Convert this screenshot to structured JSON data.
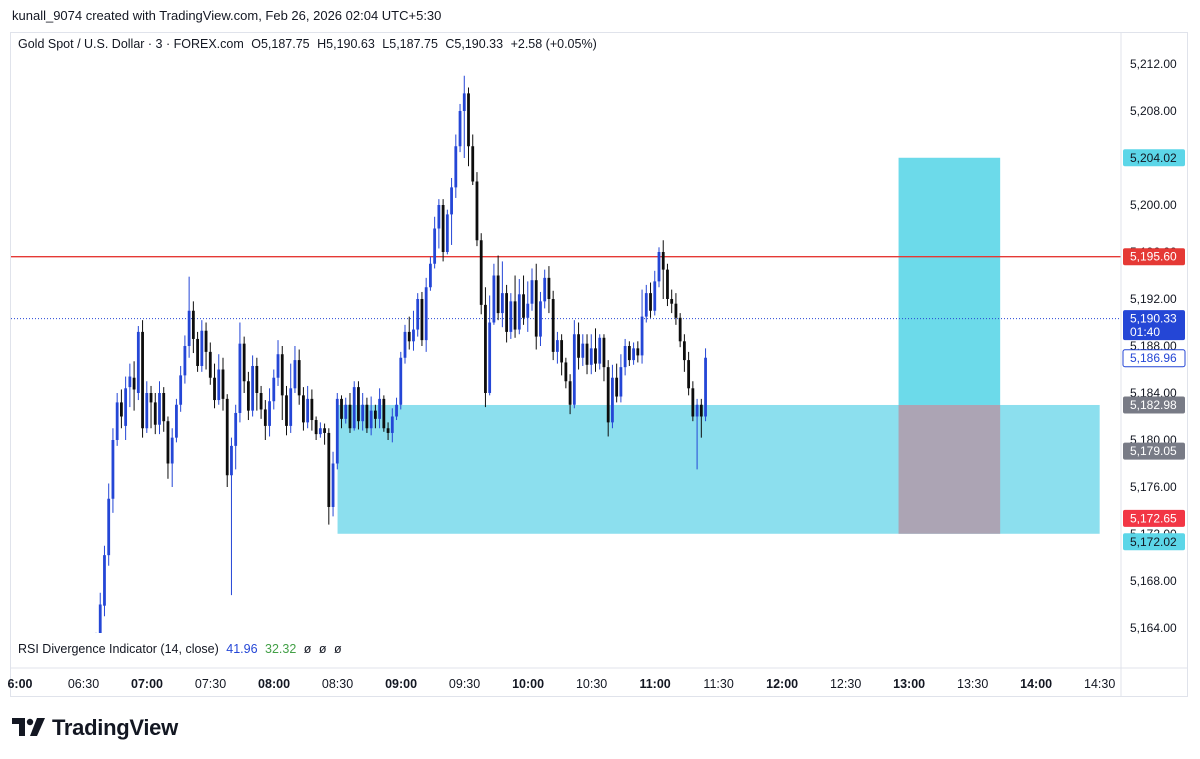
{
  "header": {
    "attribution": "kunall_9074 created with TradingView.com, Feb 26, 2026 02:04 UTC+5:30"
  },
  "legend": {
    "symbol": "Gold Spot / U.S. Dollar · 3 · FOREX.com",
    "open": "O5,187.75",
    "high": "H5,190.63",
    "low": "L5,187.75",
    "close": "C5,190.33",
    "change": "+2.58 (+0.05%)"
  },
  "rsi": {
    "name": "RSI Divergence Indicator (14, close)",
    "v1": "41.96",
    "v2": "32.32",
    "v3": "ø",
    "v4": "ø",
    "v5": "ø"
  },
  "logo": {
    "text": "TradingView"
  },
  "colors": {
    "bull": "#2446d6",
    "bear": "#0d0d0d",
    "zone": "#7fdcec",
    "target": "#5cd6e8",
    "stop": "#aea0b0",
    "resistance": "#e53935",
    "current": "#2446d6"
  },
  "chart_data": {
    "type": "candlestick",
    "ylim": [
      5163,
      5214
    ],
    "y_ticks": [
      "5,164.00",
      "5,168.00",
      "5,172.00",
      "5,176.00",
      "5,180.00",
      "5,184.00",
      "5,188.00",
      "5,192.00",
      "5,196.00",
      "5,200.00",
      "5,204.00",
      "5,208.00",
      "5,212.00"
    ],
    "y_tick_values": [
      5164,
      5168,
      5172,
      5176,
      5180,
      5184,
      5188,
      5192,
      5196,
      5200,
      5204,
      5208,
      5212
    ],
    "x_ticks": [
      {
        "label": "6:00",
        "t": 0,
        "major": true
      },
      {
        "label": "06:30",
        "t": 30,
        "major": false
      },
      {
        "label": "07:00",
        "t": 60,
        "major": true
      },
      {
        "label": "07:30",
        "t": 90,
        "major": false
      },
      {
        "label": "08:00",
        "t": 120,
        "major": true
      },
      {
        "label": "08:30",
        "t": 150,
        "major": false
      },
      {
        "label": "09:00",
        "t": 180,
        "major": true
      },
      {
        "label": "09:30",
        "t": 210,
        "major": false
      },
      {
        "label": "10:00",
        "t": 240,
        "major": true
      },
      {
        "label": "10:30",
        "t": 270,
        "major": false
      },
      {
        "label": "11:00",
        "t": 300,
        "major": true
      },
      {
        "label": "11:30",
        "t": 330,
        "major": false
      },
      {
        "label": "12:00",
        "t": 360,
        "major": true
      },
      {
        "label": "12:30",
        "t": 390,
        "major": false
      },
      {
        "label": "13:00",
        "t": 420,
        "major": true
      },
      {
        "label": "13:30",
        "t": 450,
        "major": false
      },
      {
        "label": "14:00",
        "t": 480,
        "major": true
      },
      {
        "label": "14:30",
        "t": 510,
        "major": false
      }
    ],
    "candles": [
      [
        5160,
        5162.5,
        5159,
        5163.6
      ],
      [
        5163,
        5166,
        5162,
        5167
      ],
      [
        5165.9,
        5170.2,
        5165,
        5171
      ],
      [
        5170.2,
        5175,
        5169.3,
        5176.3
      ],
      [
        5175,
        5180,
        5173.8,
        5181
      ],
      [
        5180,
        5183.2,
        5179.5,
        5184
      ],
      [
        5183.2,
        5182,
        5181,
        5184.3
      ],
      [
        5181.2,
        5184.4,
        5180,
        5185.4
      ],
      [
        5184.5,
        5185.4,
        5182.8,
        5186.5
      ],
      [
        5185.3,
        5184.3,
        5182.5,
        5186.7
      ],
      [
        5184,
        5189.2,
        5183.4,
        5189.7
      ],
      [
        5189.2,
        5181,
        5180.2,
        5190.2
      ],
      [
        5181,
        5184,
        5180.6,
        5185
      ],
      [
        5184,
        5183.2,
        5181,
        5184.6
      ],
      [
        5183.2,
        5181.3,
        5180.5,
        5184
      ],
      [
        5181.3,
        5184,
        5180.5,
        5185
      ],
      [
        5184,
        5181.6,
        5180.7,
        5184.5
      ],
      [
        5181.6,
        5178,
        5176.7,
        5182
      ],
      [
        5178,
        5180.2,
        5176,
        5181
      ],
      [
        5180.2,
        5183,
        5179.8,
        5183.5
      ],
      [
        5183,
        5185.5,
        5182.4,
        5186.3
      ],
      [
        5185.5,
        5188,
        5184.8,
        5188.9
      ],
      [
        5188,
        5191,
        5187,
        5193.9
      ],
      [
        5191,
        5188.6,
        5187.4,
        5191.8
      ],
      [
        5188.6,
        5186.3,
        5185.8,
        5189.2
      ],
      [
        5186.3,
        5189.3,
        5185.8,
        5190.2
      ],
      [
        5189.3,
        5187.5,
        5186,
        5190
      ],
      [
        5187.5,
        5185.3,
        5184.7,
        5188.3
      ],
      [
        5185.3,
        5183.4,
        5182.7,
        5186.5
      ],
      [
        5183.4,
        5186,
        5183,
        5187.3
      ],
      [
        5186,
        5183.5,
        5182.5,
        5187
      ],
      [
        5183.5,
        5177,
        5176,
        5183.9
      ],
      [
        5177,
        5179.5,
        5166.8,
        5180.2
      ],
      [
        5179.5,
        5182.3,
        5177.5,
        5183
      ],
      [
        5182.3,
        5188.2,
        5181.5,
        5190
      ],
      [
        5188.2,
        5185,
        5184,
        5188.8
      ],
      [
        5185,
        5182.5,
        5181.7,
        5185.8
      ],
      [
        5182.5,
        5186.3,
        5182,
        5187.2
      ],
      [
        5186.3,
        5184,
        5182.5,
        5187
      ],
      [
        5184,
        5182.6,
        5181.8,
        5184.6
      ],
      [
        5182.6,
        5181.2,
        5180,
        5183.4
      ],
      [
        5181.2,
        5183.3,
        5180.3,
        5184.4
      ],
      [
        5183.3,
        5185.3,
        5182.6,
        5186
      ],
      [
        5185.3,
        5187.3,
        5184.6,
        5188.5
      ],
      [
        5187.3,
        5183.8,
        5181.7,
        5188
      ],
      [
        5183.8,
        5181.2,
        5180.4,
        5184.6
      ],
      [
        5181.2,
        5184.4,
        5180.6,
        5186.5
      ],
      [
        5184.4,
        5186.8,
        5184,
        5188
      ],
      [
        5186.8,
        5183.8,
        5183,
        5187.7
      ],
      [
        5183.8,
        5181.5,
        5180.8,
        5184.5
      ],
      [
        5181.5,
        5183.5,
        5181,
        5184.6
      ],
      [
        5183.5,
        5181.7,
        5180.8,
        5184.3
      ],
      [
        5181.7,
        5180.5,
        5180,
        5182
      ],
      [
        5180.5,
        5181,
        5180.2,
        5181.5
      ],
      [
        5181,
        5180.6,
        5179.6,
        5181.4
      ],
      [
        5180.6,
        5174.3,
        5172.8,
        5181
      ],
      [
        5174.3,
        5178,
        5173.5,
        5179
      ],
      [
        5178,
        5183.5,
        5177.5,
        5184
      ],
      [
        5183.5,
        5181.8,
        5181,
        5183.8
      ],
      [
        5181.8,
        5183,
        5181.4,
        5183.6
      ],
      [
        5183,
        5181,
        5180.6,
        5184
      ],
      [
        5181,
        5184.5,
        5180.8,
        5185
      ],
      [
        5184.5,
        5181.6,
        5180.9,
        5185
      ],
      [
        5181.6,
        5183,
        5180.8,
        5184
      ],
      [
        5183,
        5181,
        5180.6,
        5183.6
      ],
      [
        5181,
        5182.5,
        5180.4,
        5183.7
      ],
      [
        5182.5,
        5181.8,
        5181,
        5183
      ],
      [
        5181.8,
        5183.5,
        5181,
        5184.4
      ],
      [
        5183.5,
        5181,
        5180.7,
        5183.8
      ],
      [
        5181,
        5180.6,
        5180,
        5181.5
      ],
      [
        5180.6,
        5182,
        5179.8,
        5182.7
      ],
      [
        5182,
        5183,
        5181.7,
        5183.6
      ],
      [
        5183,
        5187,
        5182.6,
        5187.5
      ],
      [
        5187,
        5189.2,
        5186.5,
        5189.8
      ],
      [
        5189.2,
        5188.4,
        5187.7,
        5190.5
      ],
      [
        5188.4,
        5189.4,
        5187.6,
        5191
      ],
      [
        5189.4,
        5192,
        5188.8,
        5192.5
      ],
      [
        5192,
        5188.5,
        5188,
        5192.6
      ],
      [
        5188.5,
        5193,
        5187.5,
        5193.8
      ],
      [
        5193,
        5195,
        5192.7,
        5195.6
      ],
      [
        5195,
        5198,
        5194.6,
        5199
      ],
      [
        5198,
        5200,
        5196.3,
        5200.5
      ],
      [
        5200,
        5196,
        5195.2,
        5200.5
      ],
      [
        5196,
        5199.2,
        5195.8,
        5199.6
      ],
      [
        5199.2,
        5201.5,
        5196.6,
        5202.3
      ],
      [
        5201.5,
        5205,
        5200.6,
        5206
      ],
      [
        5205,
        5208,
        5204.5,
        5208.6
      ],
      [
        5208,
        5209.5,
        5204,
        5211
      ],
      [
        5209.5,
        5205,
        5203.3,
        5210
      ],
      [
        5205,
        5202,
        5201.7,
        5206
      ],
      [
        5202,
        5197,
        5196.5,
        5202.8
      ],
      [
        5197,
        5191.5,
        5190.7,
        5197.6
      ],
      [
        5191.5,
        5184,
        5182.8,
        5193
      ],
      [
        5184,
        5190,
        5183.8,
        5192.3
      ],
      [
        5190,
        5194,
        5189.8,
        5195
      ],
      [
        5194,
        5190.8,
        5190.2,
        5195.7
      ],
      [
        5190.8,
        5192.5,
        5189.6,
        5195.2
      ],
      [
        5192.5,
        5189.2,
        5188.3,
        5193.2
      ],
      [
        5189.2,
        5191.8,
        5188.6,
        5192.5
      ],
      [
        5191.8,
        5189.4,
        5188.7,
        5194
      ],
      [
        5189.4,
        5192.4,
        5189,
        5193.7
      ],
      [
        5192.4,
        5190.4,
        5189.8,
        5194
      ],
      [
        5190.4,
        5191.6,
        5189.2,
        5193.5
      ],
      [
        5191.6,
        5193.6,
        5191,
        5194.6
      ],
      [
        5193.6,
        5188.8,
        5187.7,
        5195
      ],
      [
        5188.8,
        5191.8,
        5188,
        5192.6
      ],
      [
        5191.8,
        5193.8,
        5191.2,
        5194.5
      ],
      [
        5193.8,
        5192,
        5190.8,
        5194.8
      ],
      [
        5192,
        5187.5,
        5186.8,
        5192.7
      ],
      [
        5187.5,
        5188.5,
        5186.5,
        5189.2
      ],
      [
        5188.5,
        5186.6,
        5185.5,
        5189
      ],
      [
        5186.6,
        5185,
        5184.4,
        5187
      ],
      [
        5185,
        5183,
        5182.2,
        5185.6
      ],
      [
        5183,
        5189,
        5182.7,
        5190.2
      ],
      [
        5189,
        5187,
        5186,
        5190
      ],
      [
        5187,
        5188.2,
        5186.3,
        5189
      ],
      [
        5188.2,
        5186.4,
        5185.6,
        5189
      ],
      [
        5186.4,
        5187.8,
        5185.6,
        5189
      ],
      [
        5187.8,
        5186.5,
        5185.8,
        5189.5
      ],
      [
        5186.5,
        5188.7,
        5186,
        5189
      ],
      [
        5188.7,
        5186.2,
        5185,
        5189
      ],
      [
        5186.2,
        5181.5,
        5180.3,
        5186.8
      ],
      [
        5181.5,
        5185.3,
        5181,
        5186.4
      ],
      [
        5185.3,
        5183.7,
        5183.2,
        5186.5
      ],
      [
        5183.7,
        5186.2,
        5183.2,
        5187.3
      ],
      [
        5186.2,
        5188,
        5185.5,
        5188.6
      ],
      [
        5188,
        5186.8,
        5186.3,
        5188.4
      ],
      [
        5186.8,
        5187.8,
        5186.4,
        5188.3
      ],
      [
        5187.8,
        5187.2,
        5186.6,
        5188.4
      ],
      [
        5187.2,
        5190.5,
        5186.5,
        5192.8
      ],
      [
        5190.5,
        5192.5,
        5190,
        5193.2
      ],
      [
        5192.5,
        5191,
        5190.4,
        5193.4
      ],
      [
        5191,
        5193.5,
        5190.6,
        5194.4
      ],
      [
        5193.5,
        5196,
        5193,
        5196.4
      ],
      [
        5196,
        5194.5,
        5192,
        5197
      ],
      [
        5194.5,
        5192,
        5191.4,
        5195
      ],
      [
        5192,
        5191.6,
        5190.8,
        5192.8
      ],
      [
        5191.6,
        5190.4,
        5189.8,
        5192.5
      ],
      [
        5190.4,
        5188.4,
        5187.9,
        5190.8
      ],
      [
        5188.4,
        5186.8,
        5185.8,
        5189
      ],
      [
        5186.8,
        5184.4,
        5183.8,
        5187.5
      ],
      [
        5184.4,
        5182,
        5181.6,
        5185
      ],
      [
        5182,
        5183,
        5177.5,
        5183.5
      ],
      [
        5183,
        5182,
        5180.2,
        5183.5
      ],
      [
        5182,
        5187,
        5181.6,
        5187.8
      ]
    ],
    "levels": [
      {
        "name": "resistance",
        "value": 5195.6,
        "label": "5,195.60"
      },
      {
        "name": "target",
        "value": 5204.02,
        "label": "5,204.02"
      },
      {
        "name": "current-price",
        "value": 5190.33,
        "label": "5,190.33",
        "countdown": "01:40"
      },
      {
        "name": "crosshair",
        "value": 5186.96,
        "label": "5,186.96"
      },
      {
        "name": "entry",
        "value": 5182.98,
        "label": "5,182.98"
      },
      {
        "name": "level-5179",
        "value": 5179.05,
        "label": "5,179.05"
      },
      {
        "name": "level-5172-65",
        "value": 5172.65,
        "label": "5,172.65"
      },
      {
        "name": "zone-bottom",
        "value": 5172.02,
        "label": "5,172.02"
      }
    ],
    "zones": [
      {
        "name": "demand-zone",
        "t0": 150,
        "t1": 510,
        "top": 5182.98,
        "bottom": 5172.02
      },
      {
        "name": "long-target",
        "t0": 415,
        "t1": 463,
        "top": 5204.02,
        "bottom": 5182.98
      },
      {
        "name": "long-stop",
        "t0": 415,
        "t1": 463,
        "top": 5182.98,
        "bottom": 5172.02
      }
    ]
  }
}
